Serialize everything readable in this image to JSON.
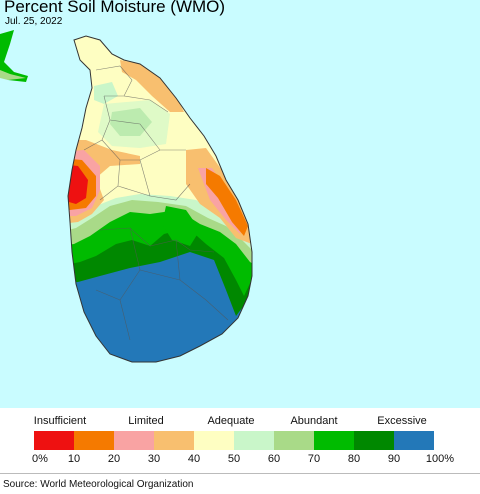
{
  "title": "Percent Soil Moisture (WMO)",
  "date": "Jul. 25, 2022",
  "legend": {
    "categories": [
      "Insufficient",
      "Limited",
      "Adequate",
      "Abundant",
      "Excessive"
    ],
    "ticks": [
      "0%",
      "10",
      "20",
      "30",
      "40",
      "50",
      "60",
      "70",
      "80",
      "90",
      "100%"
    ],
    "colors": [
      "#ee1111",
      "#f57a00",
      "#f9a3a3",
      "#f8bf6f",
      "#fefec2",
      "#c9f6c9",
      "#a9da88",
      "#00bb00",
      "#008800",
      "#2378b8"
    ]
  },
  "source": "Source: World Meteorological Organization",
  "colors": {
    "ocean": "#c9fcff",
    "land": "#2378b8"
  }
}
